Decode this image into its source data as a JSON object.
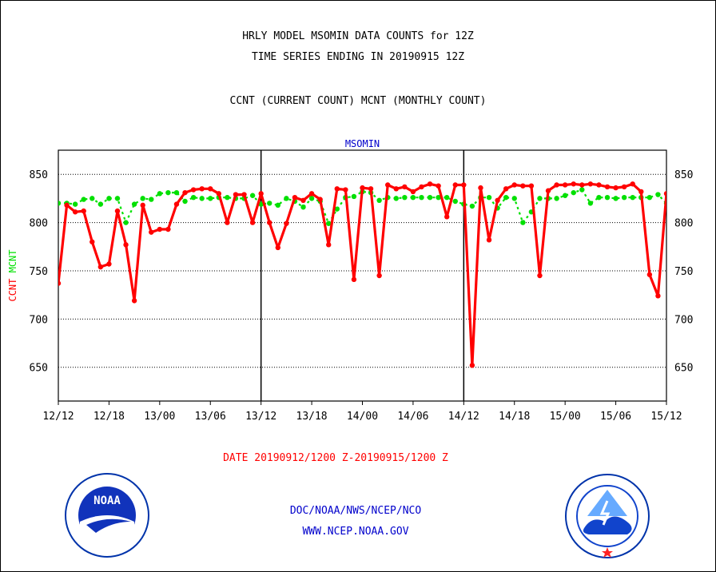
{
  "header": {
    "line1": "HRLY MODEL MSOMIN DATA COUNTS for 12Z",
    "line2": "TIME SERIES ENDING IN 20190915 12Z",
    "line3": "CCNT (CURRENT COUNT) MCNT (MONTHLY COUNT)"
  },
  "footer": {
    "date_range": "DATE 20190912/1200 Z-20190915/1200 Z",
    "org": "DOC/NOAA/NWS/NCEP/NCO",
    "url": "WWW.NCEP.NOAA.GOV",
    "noaa_logo_text": "NOAA",
    "date_color": "#ff0000",
    "org_color": "#0000cc"
  },
  "chart_data": {
    "type": "line",
    "title": "MSOMIN",
    "ylabel_left": [
      "CCNT",
      "MCNT"
    ],
    "ylim": [
      615,
      875
    ],
    "yticks": [
      650,
      700,
      750,
      800,
      850
    ],
    "xlim": [
      0,
      72
    ],
    "xticks": [
      {
        "x": 0,
        "label": "12/12"
      },
      {
        "x": 6,
        "label": "12/18"
      },
      {
        "x": 12,
        "label": "13/00"
      },
      {
        "x": 18,
        "label": "13/06"
      },
      {
        "x": 24,
        "label": "13/12"
      },
      {
        "x": 30,
        "label": "13/18"
      },
      {
        "x": 36,
        "label": "14/00"
      },
      {
        "x": 42,
        "label": "14/06"
      },
      {
        "x": 48,
        "label": "14/12"
      },
      {
        "x": 54,
        "label": "14/18"
      },
      {
        "x": 60,
        "label": "15/00"
      },
      {
        "x": 66,
        "label": "15/06"
      },
      {
        "x": 72,
        "label": "15/12"
      }
    ],
    "day_dividers": [
      24,
      48
    ],
    "grid": "horizontal-dotted",
    "series": [
      {
        "name": "CCNT",
        "color": "#ff0000",
        "style": "solid",
        "values": [
          737,
          818,
          811,
          812,
          780,
          754,
          757,
          812,
          777,
          719,
          818,
          790,
          793,
          793,
          819,
          831,
          834,
          835,
          835,
          830,
          800,
          829,
          829,
          800,
          830,
          800,
          774,
          799,
          826,
          823,
          830,
          824,
          777,
          835,
          834,
          741,
          836,
          835,
          745,
          839,
          835,
          837,
          832,
          837,
          840,
          838,
          806,
          839,
          839,
          652,
          836,
          782,
          823,
          835,
          839,
          838,
          838,
          745,
          833,
          839,
          839,
          840,
          839,
          840,
          839,
          837,
          836,
          837,
          840,
          832,
          746,
          724,
          830
        ]
      },
      {
        "name": "MCNT",
        "color": "#00e000",
        "style": "dotted",
        "values": [
          820,
          820,
          819,
          824,
          825,
          819,
          825,
          825,
          800,
          819,
          825,
          824,
          830,
          831,
          831,
          822,
          826,
          825,
          825,
          826,
          826,
          825,
          825,
          828,
          819,
          820,
          818,
          825,
          822,
          816,
          825,
          822,
          799,
          814,
          826,
          827,
          832,
          831,
          823,
          826,
          825,
          826,
          826,
          826,
          826,
          826,
          826,
          822,
          819,
          817,
          826,
          826,
          815,
          826,
          825,
          800,
          811,
          825,
          825,
          825,
          828,
          831,
          834,
          820,
          826,
          826,
          825,
          826,
          826,
          826,
          826,
          829,
          820
        ]
      }
    ]
  }
}
